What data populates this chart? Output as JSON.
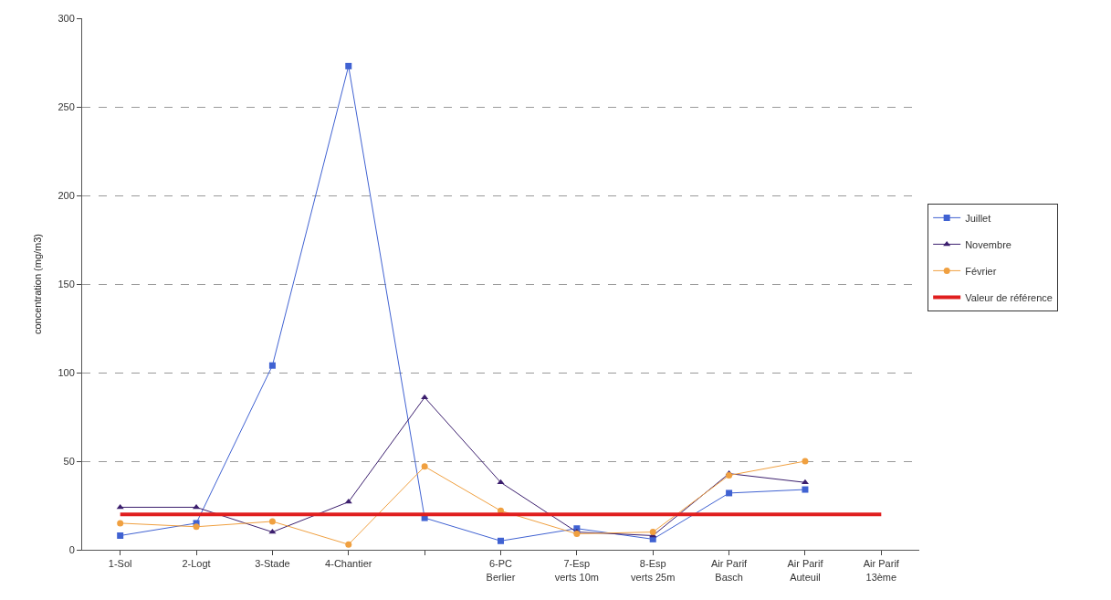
{
  "chart_data": {
    "type": "line",
    "ylabel": "concentration (mg/m3)",
    "categories": [
      "1-Sol",
      "2-Logt",
      "3-Stade",
      "4-Chantier",
      null,
      "6-PC\nBerlier",
      "7-Esp\nverts 10m",
      "8-Esp\nverts 25m",
      "Air Parif\nBasch",
      "Air Parif\nAuteuil",
      "Air Parif\n13ème"
    ],
    "series": [
      {
        "name": "Juillet",
        "color": "#4062d2",
        "marker": "square",
        "values": [
          8,
          15,
          104,
          273,
          18,
          5,
          12,
          6,
          32,
          34,
          null
        ]
      },
      {
        "name": "Novembre",
        "color": "#3c1f6e",
        "marker": "triangle",
        "values": [
          24,
          24,
          10,
          27,
          86,
          38,
          10,
          8,
          43,
          38,
          null
        ]
      },
      {
        "name": "Février",
        "color": "#f0a040",
        "marker": "circle",
        "values": [
          15,
          13,
          16,
          3,
          47,
          22,
          9,
          10,
          42,
          50,
          null
        ]
      },
      {
        "name": "Valeur de référence",
        "color": "#e01e1e",
        "marker": "none",
        "values": [
          20,
          20,
          20,
          20,
          20,
          20,
          20,
          20,
          20,
          20,
          20
        ]
      }
    ],
    "ylim": [
      0,
      300
    ],
    "yticks": [
      0,
      50,
      100,
      150,
      200,
      250,
      300
    ],
    "grid": "y",
    "legend": "right",
    "line_style": "solid"
  }
}
